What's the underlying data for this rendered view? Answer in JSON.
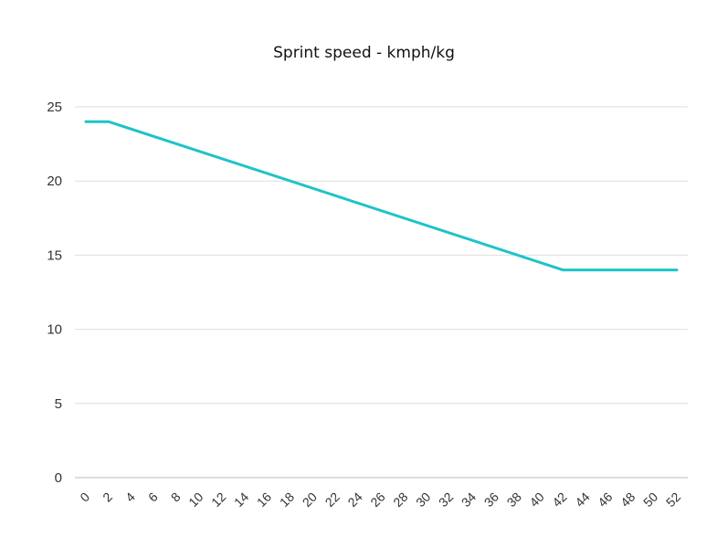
{
  "chart_data": {
    "type": "line",
    "title": "Sprint speed - kmph/kg",
    "xlabel": "",
    "ylabel": "",
    "x_ticks": [
      0,
      2,
      4,
      6,
      8,
      10,
      12,
      14,
      16,
      18,
      20,
      22,
      24,
      26,
      28,
      30,
      32,
      34,
      36,
      38,
      40,
      42,
      44,
      46,
      48,
      50,
      52
    ],
    "y_ticks": [
      0,
      5,
      10,
      15,
      20,
      25
    ],
    "xlim": [
      0,
      52
    ],
    "ylim": [
      0,
      25
    ],
    "grid": "horizontal",
    "legend": "none",
    "series": [
      {
        "color": "#1fc3c9",
        "points": [
          [
            0,
            24
          ],
          [
            2,
            24
          ],
          [
            42,
            14
          ],
          [
            52,
            14
          ]
        ]
      }
    ]
  }
}
